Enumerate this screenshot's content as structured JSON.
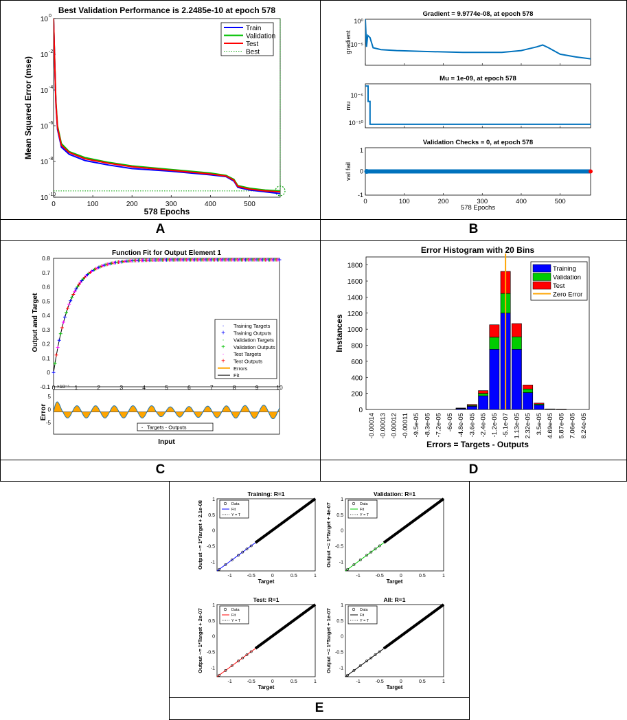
{
  "labels": {
    "a": "A",
    "b": "B",
    "c": "C",
    "d": "D",
    "e": "E"
  },
  "chart_data": [
    {
      "id": "A",
      "type": "line",
      "title": "Best Validation Performance is 2.2485e-10 at epoch 578",
      "xlabel": "578 Epochs",
      "ylabel": "Mean Squared Error  (mse)",
      "yscale": "log",
      "xlim": [
        0,
        578
      ],
      "ylim_exp": [
        -10,
        0
      ],
      "xticks": [
        "0",
        "100",
        "200",
        "300",
        "400",
        "500"
      ],
      "xtick_values": [
        0,
        100,
        200,
        300,
        400,
        500
      ],
      "ytick_exps": [
        0,
        -2,
        -4,
        -6,
        -8,
        -10
      ],
      "legend": [
        "Train",
        "Validation",
        "Test",
        "Best"
      ],
      "best_epoch": 578,
      "best_value": 2.2485e-10,
      "series": [
        {
          "name": "Train",
          "color": "#0000ff",
          "x": [
            0,
            3,
            6,
            10,
            20,
            40,
            80,
            140,
            200,
            300,
            400,
            440,
            460,
            470,
            500,
            540,
            578
          ],
          "log10y": [
            0,
            -2.5,
            -4.8,
            -6.2,
            -7.2,
            -7.6,
            -7.95,
            -8.2,
            -8.4,
            -8.55,
            -8.75,
            -8.85,
            -9.1,
            -9.45,
            -9.6,
            -9.7,
            -9.8
          ]
        },
        {
          "name": "Validation",
          "color": "#00c000",
          "x": [
            0,
            3,
            6,
            10,
            20,
            40,
            80,
            140,
            200,
            300,
            400,
            440,
            460,
            470,
            500,
            540,
            578
          ],
          "log10y": [
            0,
            -2.4,
            -4.6,
            -6.0,
            -7.0,
            -7.45,
            -7.78,
            -8.05,
            -8.25,
            -8.45,
            -8.65,
            -8.78,
            -9.0,
            -9.35,
            -9.5,
            -9.6,
            -9.65
          ]
        },
        {
          "name": "Test",
          "color": "#ff0000",
          "x": [
            0,
            3,
            6,
            10,
            20,
            40,
            80,
            140,
            200,
            300,
            400,
            440,
            460,
            470,
            500,
            540,
            578
          ],
          "log10y": [
            0,
            -2.5,
            -4.7,
            -6.1,
            -7.1,
            -7.5,
            -7.85,
            -8.1,
            -8.3,
            -8.5,
            -8.7,
            -8.82,
            -9.05,
            -9.4,
            -9.55,
            -9.65,
            -9.7
          ]
        }
      ]
    },
    {
      "id": "B",
      "type": "line",
      "subplots": [
        {
          "title": "Gradient = 9.9774e-08, at epoch 578",
          "ylabel": "gradient",
          "yticks": [
            "10⁰",
            "10⁻⁵"
          ],
          "x": [
            0,
            3,
            6,
            12,
            20,
            40,
            80,
            150,
            250,
            350,
            400,
            440,
            455,
            470,
            500,
            540,
            578
          ],
          "y": [
            0.0,
            0.6,
            0.35,
            0.4,
            0.62,
            0.66,
            0.68,
            0.7,
            0.72,
            0.72,
            0.68,
            0.6,
            0.56,
            0.62,
            0.76,
            0.82,
            0.86
          ]
        },
        {
          "title": "Mu = 1e-09, at epoch 578",
          "ylabel": "mu",
          "yticks": [
            "10⁻⁵",
            "10⁻¹⁰"
          ],
          "x": [
            0,
            7,
            7,
            12,
            12,
            578
          ],
          "y": [
            0.05,
            0.05,
            0.4,
            0.4,
            0.92,
            0.92
          ]
        },
        {
          "title": "Validation Checks = 0, at epoch 578",
          "ylabel": "val fail",
          "yticks": [
            "1",
            "0",
            "-1"
          ],
          "x": [
            0,
            578
          ],
          "y": [
            0.5,
            0.5
          ]
        }
      ],
      "xlabel": "578 Epochs",
      "xticks": [
        "0",
        "100",
        "200",
        "300",
        "400",
        "500"
      ]
    },
    {
      "id": "C",
      "type": "line",
      "title": "Function Fit for Output Element 1",
      "xlabel": "Input",
      "ylabel": "Output and Target",
      "ylabel2": "Error",
      "xticks": [
        "0",
        "1",
        "2",
        "3",
        "4",
        "5",
        "6",
        "7",
        "8",
        "9",
        "10"
      ],
      "xscale_note": "×10⁻⁵",
      "yticks": [
        "0.8",
        "0.7",
        "0.6",
        "0.5",
        "0.4",
        "0.3",
        "0.2",
        "0.1",
        "0",
        "-0.1"
      ],
      "yticks2": [
        "5",
        "0",
        "-5"
      ],
      "ylim": [
        -0.1,
        0.8
      ],
      "legend": [
        "Training Targets",
        "Training Outputs",
        "Validation Targets",
        "Validation Outputs",
        "Test Targets",
        "Test Outputs",
        "Errors",
        "Fit"
      ],
      "legend2": [
        "Targets - Outputs"
      ],
      "fit_formula": "0.79*(1-exp(-1.35*x))"
    },
    {
      "id": "D",
      "type": "bar",
      "title": "Error Histogram with 20 Bins",
      "xlabel": "Errors = Targets - Outputs",
      "ylabel": "Instances",
      "categories": [
        "-0.00014",
        "-0.00013",
        "-0.00012",
        "-0.00011",
        "-9.5e-05",
        "-8.3e-05",
        "-7.2e-05",
        "-6e-05",
        "-4.8e-05",
        "-3.6e-05",
        "-2.4e-05",
        "-1.2e-05",
        "-5.1e-07",
        "1.13e-05",
        "2.32e-05",
        "3.5e-05",
        "4.69e-05",
        "5.87e-05",
        "7.06e-05",
        "8.24e-05"
      ],
      "yticks": [
        0,
        200,
        400,
        600,
        800,
        1000,
        1200,
        1400,
        1600,
        1800
      ],
      "ylim": [
        0,
        1900
      ],
      "legend": [
        "Training",
        "Validation",
        "Test",
        "Zero Error"
      ],
      "series": [
        {
          "name": "Training",
          "color": "#0000ff",
          "values": [
            0,
            0,
            0,
            0,
            0,
            0,
            0,
            0,
            12,
            40,
            170,
            750,
            1200,
            750,
            210,
            55,
            5,
            3,
            0,
            0
          ]
        },
        {
          "name": "Validation",
          "color": "#00cc00",
          "values": [
            0,
            0,
            0,
            0,
            0,
            0,
            0,
            0,
            3,
            10,
            30,
            150,
            245,
            155,
            45,
            12,
            1,
            1,
            0,
            0
          ]
        },
        {
          "name": "Test",
          "color": "#ff0000",
          "values": [
            0,
            0,
            0,
            0,
            0,
            0,
            0,
            0,
            3,
            12,
            35,
            155,
            275,
            165,
            50,
            13,
            1,
            1,
            0,
            0
          ]
        }
      ],
      "zero_error_index": 12
    },
    {
      "id": "E",
      "type": "scatter",
      "subplots": [
        {
          "title": "Training: R=1",
          "ylabel": "Output ~= 1*Target + 2.1e-08",
          "fit_color": "#0000ff"
        },
        {
          "title": "Validation: R=1",
          "ylabel": "Output ~= 1*Target + 4e-07",
          "fit_color": "#00cc00"
        },
        {
          "title": "Test: R=1",
          "ylabel": "Output ~= 1*Target + 2e-07",
          "fit_color": "#ff0000"
        },
        {
          "title": "All: R=1",
          "ylabel": "Output ~= 1*Target + 1e-07",
          "fit_color": "#000000"
        }
      ],
      "xlabel": "Target",
      "xticks": [
        "-1",
        "-0.5",
        "0",
        "0.5",
        "1"
      ],
      "yticks": [
        "1",
        "0.5",
        "0",
        "-0.5",
        "-1"
      ],
      "legend": [
        "Data",
        "Fit",
        "Y = T"
      ]
    }
  ]
}
